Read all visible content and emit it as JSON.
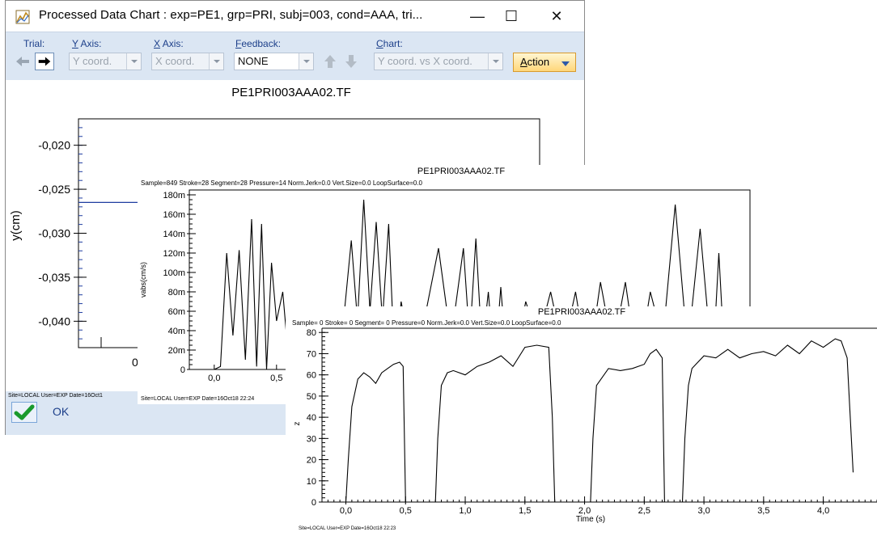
{
  "back_window": {
    "title": "Processed Data Chart : exp=PE1, grp=PRI, subj=003, cond=AAA, tri...",
    "minimize_glyph": "—",
    "maximize_glyph": "☐",
    "close_glyph": "✕",
    "toolbar": {
      "trial_label": "Trial:",
      "y_axis_label": "Axis:",
      "y_axis_key": "Y",
      "y_axis_value": "Y coord.",
      "x_axis_label": "Axis:",
      "x_axis_key": "X",
      "x_axis_value": "X coord.",
      "feedback_label": "eedback:",
      "feedback_key": "F",
      "feedback_value": "NONE",
      "chart_label": "hart:",
      "chart_key": "C",
      "chart_value": "Y coord. vs X coord.",
      "action_label": "ction",
      "action_key": "A"
    },
    "plot_title": "PE1PRI003AAA02.TF",
    "y_label": "y(cm)",
    "y_ticks": [
      "-0,020",
      "-0,025",
      "-0,030",
      "-0,035",
      "-0,040"
    ],
    "x_tick_partial": "0,",
    "status_text": "Site=LOCAL User=EXP Date=16Oct1",
    "ok_label": "OK",
    "colors": {
      "toolbar_bg": "#dbe6f3",
      "trace": "#1f3da0",
      "accent": "#ffd77a"
    }
  },
  "velocity_panel": {
    "title": "PE1PRI003AAA02.TF",
    "info": "Sample=849 Stroke=28 Segment=28 Pressure=14 Norm.Jerk=0.0 Vert.Size=0.0 LoopSurface=0.0",
    "status": "Site=LOCAL User=EXP Date=16Oct18 22:24"
  },
  "z_panel": {
    "title": "PE1PRI003AAA02.TF",
    "info": "Sample=  0 Stroke= 0 Segment= 0 Pressure=0 Norm.Jerk=0.0 Vert.Size=0.0 LoopSurface=0.0",
    "status": "Site=LOCAL User=EXP Date=16Oct18 22:23"
  },
  "chart_data": [
    {
      "type": "line",
      "title": "PE1PRI003AAA02.TF",
      "xlabel": "",
      "ylabel": "y(cm)",
      "ylim": [
        -0.043,
        -0.017
      ],
      "y_ticks": [
        "-0,020",
        "-0,025",
        "-0,030",
        "-0,035",
        "-0,040"
      ],
      "x": [
        0.0,
        1.0
      ],
      "y": [
        -0.0265,
        -0.0265
      ],
      "grid": false
    },
    {
      "type": "line",
      "title": "PE1PRI003AAA02.TF",
      "xlabel": "",
      "ylabel": "vabs(cm/s)",
      "ylim": [
        0,
        0.18
      ],
      "xlim": [
        -0.2,
        4.3
      ],
      "y_ticks": [
        "0",
        "20m",
        "40m",
        "60m",
        "80m",
        "100m",
        "120m",
        "140m",
        "160m",
        "180m"
      ],
      "x_ticks": [
        "0,0",
        "0,5"
      ],
      "x": [
        0.0,
        0.05,
        0.1,
        0.15,
        0.2,
        0.25,
        0.3,
        0.34,
        0.38,
        0.42,
        0.46,
        0.5,
        0.55,
        0.6,
        0.65,
        0.7,
        0.8,
        0.9,
        1.0,
        1.1,
        1.15,
        1.2,
        1.25,
        1.3,
        1.35,
        1.4,
        1.45,
        1.5,
        1.6,
        1.7,
        1.8,
        1.9,
        2.0,
        2.05,
        2.1,
        2.15,
        2.2,
        2.25,
        2.3,
        2.35,
        2.4,
        2.5,
        2.6,
        2.7,
        2.8,
        2.9,
        3.0,
        3.1,
        3.2,
        3.3,
        3.4,
        3.5,
        3.6,
        3.7,
        3.8,
        3.9,
        4.0,
        4.05,
        4.1,
        4.15,
        4.2
      ],
      "y": [
        0.0,
        0.003,
        0.12,
        0.035,
        0.123,
        0.01,
        0.155,
        0.003,
        0.15,
        0.0,
        0.11,
        0.05,
        0.08,
        0.005,
        0.0,
        0.0,
        0.0,
        0.0,
        0.0,
        0.133,
        0.05,
        0.175,
        0.06,
        0.152,
        0.05,
        0.15,
        0.0,
        0.07,
        0.0,
        0.06,
        0.125,
        0.03,
        0.125,
        0.03,
        0.135,
        0.02,
        0.08,
        0.0,
        0.085,
        0.0,
        0.0,
        0.07,
        0.03,
        0.08,
        0.02,
        0.08,
        0.0,
        0.09,
        0.02,
        0.09,
        0.0,
        0.08,
        0.03,
        0.17,
        0.02,
        0.145,
        0.0,
        0.12,
        0.0,
        0.0,
        0.0
      ],
      "grid": false
    },
    {
      "type": "line",
      "title": "PE1PRI003AAA02.TF",
      "xlabel": "Time (s)",
      "ylabel": "z",
      "xlim": [
        -0.2,
        4.45
      ],
      "ylim": [
        0,
        82
      ],
      "x_ticks": [
        "0,0",
        "0,5",
        "1,0",
        "1,5",
        "2,0",
        "2,5",
        "3,0",
        "3,5",
        "4,0"
      ],
      "y_ticks": [
        "0",
        "10",
        "20",
        "30",
        "40",
        "50",
        "60",
        "70",
        "80"
      ],
      "x": [
        0.0,
        0.02,
        0.05,
        0.1,
        0.15,
        0.2,
        0.25,
        0.3,
        0.35,
        0.4,
        0.45,
        0.48,
        0.5,
        0.5,
        0.75,
        0.77,
        0.8,
        0.85,
        0.9,
        1.0,
        1.1,
        1.2,
        1.3,
        1.4,
        1.5,
        1.6,
        1.7,
        1.73,
        1.75,
        1.75,
        2.05,
        2.07,
        2.1,
        2.2,
        2.3,
        2.4,
        2.5,
        2.55,
        2.6,
        2.65,
        2.67,
        2.67,
        2.82,
        2.84,
        2.87,
        2.9,
        3.0,
        3.1,
        3.2,
        3.3,
        3.4,
        3.5,
        3.6,
        3.7,
        3.8,
        3.9,
        4.0,
        4.1,
        4.15,
        4.2,
        4.25
      ],
      "y": [
        0,
        20,
        45,
        58,
        61,
        59,
        56,
        61,
        63,
        65,
        66,
        64,
        0,
        0,
        0,
        30,
        55,
        61,
        62,
        60,
        64,
        66,
        69,
        64,
        73,
        74,
        73,
        40,
        0,
        0,
        0,
        30,
        55,
        63,
        62,
        63,
        65,
        70,
        72,
        68,
        0,
        0,
        0,
        30,
        55,
        63,
        69,
        68,
        72,
        68,
        70,
        71,
        69,
        74,
        70,
        76,
        73,
        77,
        76,
        68,
        14
      ],
      "grid": false
    }
  ]
}
